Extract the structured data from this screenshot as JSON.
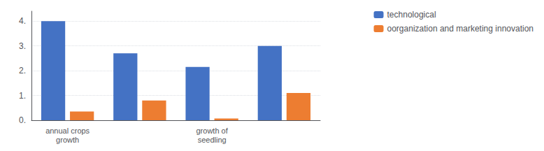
{
  "chart_data": {
    "type": "bar",
    "categories": [
      "annual crops\ngrowth",
      null,
      "growth of\nseedling",
      null
    ],
    "series": [
      {
        "name": "technological",
        "color": "#4472C4",
        "values": [
          4.0,
          2.7,
          2.15,
          3.0
        ]
      },
      {
        "name": "oorganization and marketing innovation",
        "color": "#ED7D31",
        "values": [
          0.35,
          0.8,
          0.07,
          1.1
        ]
      }
    ],
    "ylim": [
      0,
      4.4
    ],
    "yticks": [
      {
        "value": 0,
        "label": "0."
      },
      {
        "value": 1,
        "label": "1."
      },
      {
        "value": 2,
        "label": "2."
      },
      {
        "value": 3,
        "label": "3."
      },
      {
        "value": 4,
        "label": "4."
      }
    ],
    "grid": true,
    "legend": "upper right"
  }
}
